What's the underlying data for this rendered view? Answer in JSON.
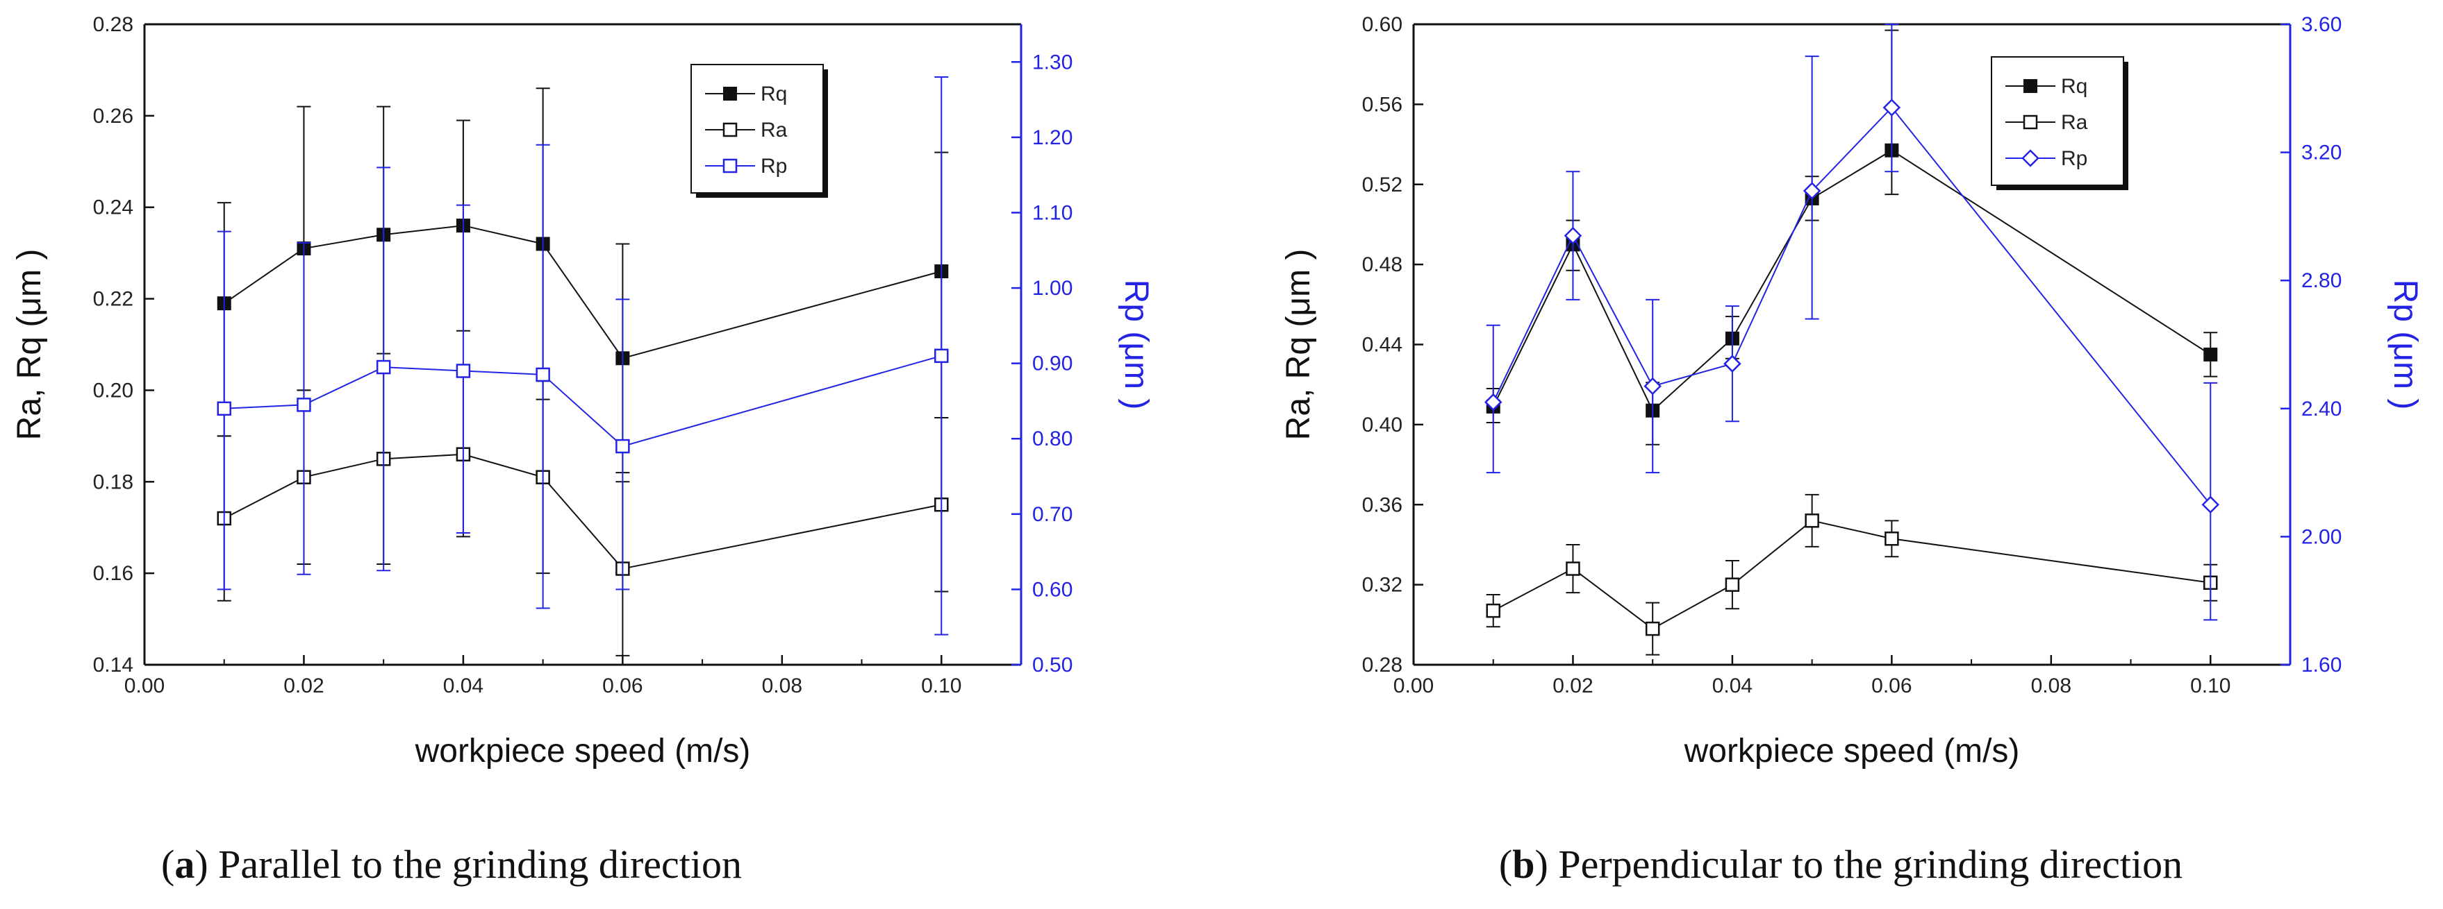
{
  "colors": {
    "black": "#111111",
    "blue": "#2323e6"
  },
  "chart_data": [
    {
      "type": "line",
      "caption_letter": "a",
      "caption_text": "Parallel to the grinding direction",
      "xlabel": "workpiece speed (m/s)",
      "ylabel": "Ra, Rq (μm )",
      "y2label": "Rp (μm )",
      "xlim": [
        0.0,
        0.11
      ],
      "ylim": [
        0.14,
        0.28
      ],
      "y2lim": [
        0.5,
        1.35
      ],
      "xticks": [
        "0.00",
        "0.02",
        "0.04",
        "0.06",
        "0.08",
        "0.10"
      ],
      "yticks": [
        "0.14",
        "0.16",
        "0.18",
        "0.20",
        "0.22",
        "0.24",
        "0.26",
        "0.28"
      ],
      "y2ticks": [
        "0.50",
        "0.60",
        "0.70",
        "0.80",
        "0.90",
        "1.00",
        "1.10",
        "1.20",
        "1.30"
      ],
      "legend": [
        "Rq",
        "Ra",
        "Rp"
      ],
      "legend_position": "top-right",
      "series": [
        {
          "name": "Rq",
          "axis": "left",
          "color": "#111111",
          "marker": "filled-square",
          "x": [
            0.01,
            0.02,
            0.03,
            0.04,
            0.05,
            0.06,
            0.1
          ],
          "y": [
            0.219,
            0.231,
            0.234,
            0.236,
            0.232,
            0.207,
            0.226
          ],
          "err_lo": [
            0.19,
            0.2,
            0.208,
            0.213,
            0.198,
            0.182,
            0.194
          ],
          "err_hi": [
            0.241,
            0.262,
            0.262,
            0.259,
            0.266,
            0.232,
            0.252
          ]
        },
        {
          "name": "Ra",
          "axis": "left",
          "color": "#111111",
          "marker": "open-square",
          "x": [
            0.01,
            0.02,
            0.03,
            0.04,
            0.05,
            0.06,
            0.1
          ],
          "y": [
            0.172,
            0.181,
            0.185,
            0.186,
            0.181,
            0.161,
            0.175
          ],
          "err_lo": [
            0.154,
            0.162,
            0.162,
            0.168,
            0.16,
            0.142,
            0.156
          ],
          "err_hi": [
            0.19,
            0.2,
            0.206,
            0.204,
            0.202,
            0.18,
            0.194
          ]
        },
        {
          "name": "Rp",
          "axis": "right",
          "color": "#2323e6",
          "marker": "open-square",
          "x": [
            0.01,
            0.02,
            0.03,
            0.04,
            0.05,
            0.06,
            0.1
          ],
          "y": [
            0.84,
            0.845,
            0.895,
            0.89,
            0.885,
            0.79,
            0.91
          ],
          "err_lo": [
            0.6,
            0.62,
            0.625,
            0.675,
            0.575,
            0.6,
            0.54
          ],
          "err_hi": [
            1.075,
            1.06,
            1.16,
            1.11,
            1.19,
            0.985,
            1.28
          ]
        }
      ]
    },
    {
      "type": "line",
      "caption_letter": "b",
      "caption_text": "Perpendicular to the grinding direction",
      "xlabel": "workpiece speed (m/s)",
      "ylabel": "Ra, Rq (μm )",
      "y2label": "Rp (μm )",
      "xlim": [
        0.0,
        0.11
      ],
      "ylim": [
        0.28,
        0.6
      ],
      "y2lim": [
        1.6,
        3.6
      ],
      "xticks": [
        "0.00",
        "0.02",
        "0.04",
        "0.06",
        "0.08",
        "0.10"
      ],
      "yticks": [
        "0.28",
        "0.32",
        "0.36",
        "0.40",
        "0.44",
        "0.48",
        "0.52",
        "0.56",
        "0.60"
      ],
      "y2ticks": [
        "1.60",
        "2.00",
        "2.40",
        "2.80",
        "3.20",
        "3.60"
      ],
      "legend": [
        "Rq",
        "Ra",
        "Rp"
      ],
      "legend_position": "top-right",
      "series": [
        {
          "name": "Rq",
          "axis": "left",
          "color": "#111111",
          "marker": "filled-square",
          "x": [
            0.01,
            0.02,
            0.03,
            0.04,
            0.05,
            0.06,
            0.1
          ],
          "y": [
            0.409,
            0.49,
            0.407,
            0.443,
            0.513,
            0.537,
            0.435
          ],
          "err_lo": [
            0.401,
            0.477,
            0.39,
            0.433,
            0.502,
            0.515,
            0.424
          ],
          "err_hi": [
            0.418,
            0.502,
            0.421,
            0.454,
            0.524,
            0.597,
            0.446
          ]
        },
        {
          "name": "Ra",
          "axis": "left",
          "color": "#111111",
          "marker": "open-square",
          "x": [
            0.01,
            0.02,
            0.03,
            0.04,
            0.05,
            0.06,
            0.1
          ],
          "y": [
            0.307,
            0.328,
            0.298,
            0.32,
            0.352,
            0.343,
            0.321
          ],
          "err_lo": [
            0.299,
            0.316,
            0.285,
            0.308,
            0.339,
            0.334,
            0.312
          ],
          "err_hi": [
            0.315,
            0.34,
            0.311,
            0.332,
            0.365,
            0.352,
            0.33
          ]
        },
        {
          "name": "Rp",
          "axis": "right",
          "color": "#2323e6",
          "marker": "open-diamond",
          "x": [
            0.01,
            0.02,
            0.03,
            0.04,
            0.05,
            0.06,
            0.1
          ],
          "y": [
            2.42,
            2.94,
            2.47,
            2.54,
            3.08,
            3.34,
            2.1
          ],
          "err_lo": [
            2.2,
            2.74,
            2.2,
            2.36,
            2.68,
            3.14,
            1.74
          ],
          "err_hi": [
            2.66,
            3.14,
            2.74,
            2.72,
            3.5,
            3.6,
            2.48
          ]
        }
      ]
    }
  ]
}
